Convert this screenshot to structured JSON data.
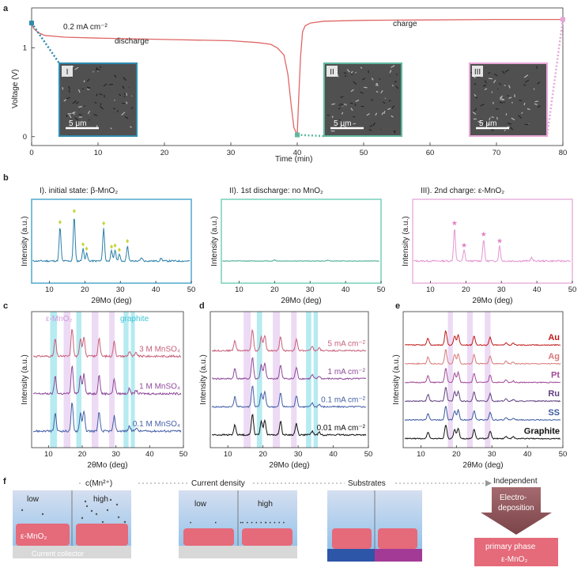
{
  "panels": {
    "a": "a",
    "b": "b",
    "c": "c",
    "d": "d",
    "e": "e",
    "f": "f"
  },
  "chart_data": [
    {
      "type": "line",
      "panel": "a",
      "current": "0.2 mA cm⁻²",
      "xlabel": "Time (min)",
      "ylabel": "Voltage (V)",
      "xlim": [
        0,
        80
      ],
      "ylim": [
        -0.1,
        1.45
      ],
      "x_ticks": [
        "0",
        "10",
        "20",
        "30",
        "40",
        "50",
        "60",
        "70",
        "80"
      ],
      "y_ticks": [
        "0",
        "1"
      ],
      "grid": false,
      "color": "#e06666",
      "annotations": {
        "discharge": "discharge",
        "charge": "charge"
      },
      "insets": [
        {
          "id": "I",
          "scale": "5 μm",
          "border": "#2f8bb0",
          "time": 0
        },
        {
          "id": "II",
          "scale": "5 μm",
          "border": "#5fb8a0",
          "time": 40
        },
        {
          "id": "III",
          "scale": "5 μm",
          "border": "#e8a6d8",
          "time": 80
        }
      ],
      "series": [
        {
          "x": [
            0,
            0.3,
            1,
            2,
            5,
            10,
            20,
            30,
            34,
            36,
            37,
            38,
            38.6,
            39.1,
            39.5,
            40
          ],
          "y": [
            1.28,
            1.22,
            1.17,
            1.14,
            1.12,
            1.11,
            1.095,
            1.08,
            1.06,
            1.04,
            1.0,
            0.92,
            0.7,
            0.35,
            0.1,
            0.02
          ]
        },
        {
          "x": [
            40,
            40.2,
            40.5,
            40.8,
            41.2,
            42,
            44,
            50,
            60,
            70,
            80
          ],
          "y": [
            0.02,
            0.4,
            0.9,
            1.18,
            1.25,
            1.28,
            1.3,
            1.31,
            1.315,
            1.32,
            1.32
          ]
        }
      ]
    },
    {
      "type": "line",
      "panel": "b",
      "subplots": [
        {
          "title": "I). initial state: β-MnO₂",
          "color": "#2a7fa8",
          "border": "#5aaed0",
          "marker": "♦",
          "marker_color": "#c5d43a",
          "xlabel": "2θMo (deg)",
          "ylabel": "Intensity (a.u.)",
          "xlim": [
            5,
            50
          ],
          "x_ticks": [
            "10",
            "20",
            "30",
            "40",
            "50"
          ],
          "peaks": [
            [
              13,
              0.62
            ],
            [
              17,
              0.82
            ],
            [
              19.5,
              0.22
            ],
            [
              20.5,
              0.14
            ],
            [
              25.3,
              0.6
            ],
            [
              27.5,
              0.18
            ],
            [
              28.5,
              0.2
            ],
            [
              29.7,
              0.12
            ],
            [
              32,
              0.28
            ],
            [
              36,
              0.06
            ],
            [
              41.5,
              0.05
            ]
          ]
        },
        {
          "title": "II). 1st discharge: no MnO₂",
          "color": "#3aa58a",
          "border": "#7fd4bd",
          "xlabel": "2θMo (deg)",
          "ylabel": "Intensity (a.u.)",
          "xlim": [
            5,
            50
          ],
          "x_ticks": [
            "10",
            "20",
            "30",
            "40",
            "50"
          ],
          "peaks": [
            [
              20,
              0.02
            ],
            [
              35,
              0.015
            ]
          ]
        },
        {
          "title": "III). 2nd charge: ε-MnO₂",
          "color": "#e495d2",
          "border": "#eab8e0",
          "marker": "★",
          "marker_color": "#e080c6",
          "xlabel": "2θMo (deg)",
          "ylabel": "Intensity (a.u.)",
          "xlim": [
            5,
            50
          ],
          "x_ticks": [
            "10",
            "20",
            "30",
            "40",
            "50"
          ],
          "peaks": [
            [
              16.8,
              0.6
            ],
            [
              19.5,
              0.2
            ],
            [
              25,
              0.4
            ],
            [
              29.5,
              0.28
            ],
            [
              38.5,
              0.06
            ]
          ]
        }
      ]
    },
    {
      "type": "line",
      "panel": "c",
      "xlabel": "2θMo (deg)",
      "ylabel": "Intensity (a.u.)",
      "xlim": [
        5,
        50
      ],
      "x_ticks": [
        "10",
        "20",
        "30",
        "40",
        "50"
      ],
      "band_labels": {
        "emno2": "ε-MnO₂",
        "graphite": "graphite"
      },
      "series": [
        {
          "name": "3 M MnSO₄",
          "color": "#c8607a"
        },
        {
          "name": "1 M MnSO₄",
          "color": "#8e4a9a"
        },
        {
          "name": "0.1 M MnSO₄",
          "color": "#4560a8"
        }
      ]
    },
    {
      "type": "line",
      "panel": "d",
      "xlabel": "2θMo (deg)",
      "ylabel": "Intensity (a.u.)",
      "xlim": [
        5,
        50
      ],
      "x_ticks": [
        "10",
        "20",
        "30",
        "40",
        "50"
      ],
      "series": [
        {
          "name": "5 mA cm⁻²",
          "color": "#c8607a"
        },
        {
          "name": "1 mA cm⁻²",
          "color": "#8e4a9a"
        },
        {
          "name": "0.1 mA cm⁻²",
          "color": "#4560a8"
        },
        {
          "name": "0.01 mA cm⁻²",
          "color": "#111111"
        }
      ]
    },
    {
      "type": "line",
      "panel": "e",
      "xlabel": "2θMo (deg)",
      "ylabel": "Intensity (a.u.)",
      "xlim": [
        5,
        50
      ],
      "x_ticks": [
        "10",
        "20",
        "30",
        "40",
        "50"
      ],
      "series": [
        {
          "name": "Au",
          "color": "#c01818"
        },
        {
          "name": "Ag",
          "color": "#d87878"
        },
        {
          "name": "Pt",
          "color": "#a04a98"
        },
        {
          "name": "Ru",
          "color": "#604080"
        },
        {
          "name": "SS",
          "color": "#3a58a0"
        },
        {
          "name": "Graphite",
          "color": "#111111"
        }
      ]
    }
  ],
  "schematic": {
    "flow_labels": [
      "c(Mn²⁺)",
      "Current density",
      "Substrates"
    ],
    "box1": {
      "low": "low",
      "high": "high",
      "emno2": "ε-MnO₂",
      "collector": "Current collector"
    },
    "box2": {
      "low": "low",
      "high": "high"
    },
    "conclusion": {
      "independent": "Independent",
      "arrow": "Electro-\ndeposition",
      "result_line1": "primary phase",
      "result_line2": "ε-MnO₂"
    }
  }
}
